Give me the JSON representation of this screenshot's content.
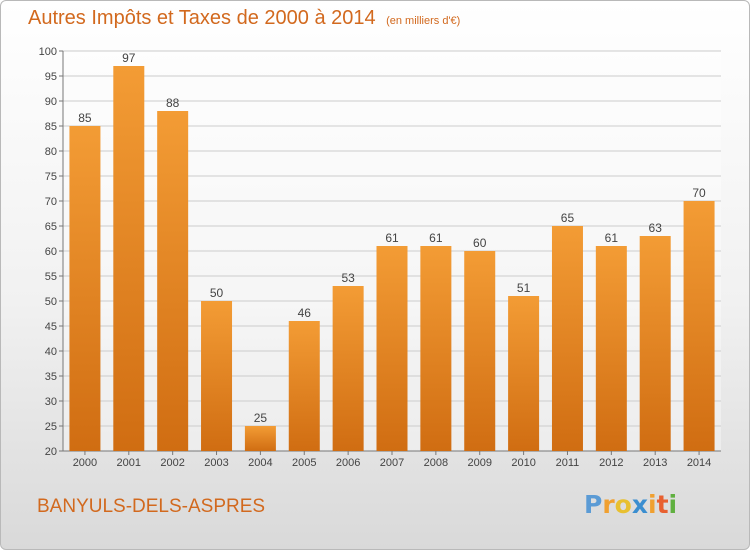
{
  "chart_data": {
    "type": "bar",
    "title": "Autres Impôts et Taxes de 2000 à 2014",
    "subtitle": "(en milliers d'€)",
    "categories": [
      "2000",
      "2001",
      "2002",
      "2003",
      "2004",
      "2005",
      "2006",
      "2007",
      "2008",
      "2009",
      "2010",
      "2011",
      "2012",
      "2013",
      "2014"
    ],
    "values": [
      85,
      97,
      88,
      50,
      25,
      46,
      53,
      61,
      61,
      60,
      51,
      65,
      61,
      63,
      70
    ],
    "ylim": [
      20,
      100
    ],
    "yticks": [
      20,
      25,
      30,
      35,
      40,
      45,
      50,
      55,
      60,
      65,
      70,
      75,
      80,
      85,
      90,
      95,
      100
    ],
    "grid": true,
    "bar_color": "#f39c35",
    "bar_color_dark": "#d06d12"
  },
  "commune": "BANYULS-DELS-ASPRES",
  "logo": {
    "letters": [
      "P",
      "r",
      "o",
      "x",
      "i",
      "t",
      "i"
    ],
    "colors": [
      "#5b9bd5",
      "#f0a030",
      "#e8c030",
      "#3a8ed0",
      "#f0a030",
      "#e86030",
      "#60b040"
    ]
  },
  "colors": {
    "title": "#d2691e",
    "grid": "#cccccc",
    "axis": "#777777"
  }
}
